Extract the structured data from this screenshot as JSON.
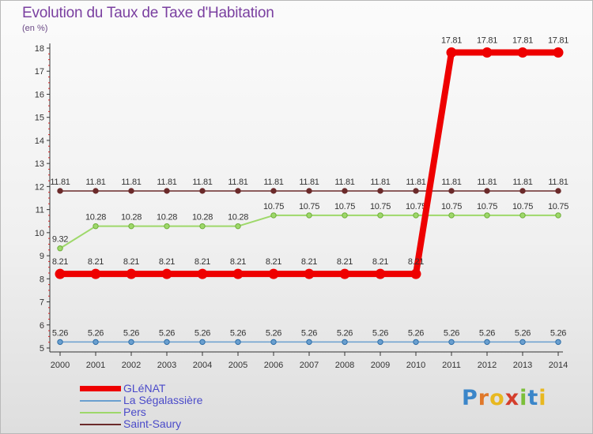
{
  "header": {
    "title": "Evolution du Taux de Taxe d'Habitation",
    "unit": "(en %)"
  },
  "branding": {
    "letters": [
      "P",
      "r",
      "o",
      "x",
      "i",
      "t",
      "i"
    ],
    "letter_colors": [
      "#3b86c9",
      "#e0782a",
      "#e8b820",
      "#d43e2c",
      "#7cbf3a",
      "#3b86c9",
      "#e8b820"
    ]
  },
  "chart_data": {
    "type": "line",
    "title": "Evolution du Taux de Taxe d'Habitation",
    "ylabel": "(en %)",
    "xlabel": "",
    "x": [
      "2000",
      "2001",
      "2002",
      "2003",
      "2004",
      "2005",
      "2006",
      "2007",
      "2008",
      "2009",
      "2010",
      "2011",
      "2012",
      "2013",
      "2014"
    ],
    "ylim": [
      5,
      18
    ],
    "yticks": [
      "5",
      "6",
      "7",
      "8",
      "9",
      "10",
      "11",
      "12",
      "13",
      "14",
      "15",
      "16",
      "17",
      "18"
    ],
    "grid": false,
    "legend_position": "bottom-left",
    "series": [
      {
        "name": "Saint-Saury",
        "color": "#6b2a2a",
        "values": [
          11.81,
          11.81,
          11.81,
          11.81,
          11.81,
          11.81,
          11.81,
          11.81,
          11.81,
          11.81,
          11.81,
          11.81,
          11.81,
          11.81,
          11.81
        ],
        "labels": [
          "11.81",
          "11.81",
          "11.81",
          "11.81",
          "11.81",
          "11.81",
          "11.81",
          "11.81",
          "11.81",
          "11.81",
          "11.81",
          "11.81",
          "11.81",
          "11.81",
          "11.81"
        ]
      },
      {
        "name": "Pers",
        "color": "#9ed86a",
        "values": [
          9.32,
          10.28,
          10.28,
          10.28,
          10.28,
          10.28,
          10.75,
          10.75,
          10.75,
          10.75,
          10.75,
          10.75,
          10.75,
          10.75,
          10.75
        ],
        "labels": [
          "9.32",
          "10.28",
          "10.28",
          "10.28",
          "10.28",
          "10.28",
          "10.75",
          "10.75",
          "10.75",
          "10.75",
          "10.75",
          "10.75",
          "10.75",
          "10.75",
          "10.75"
        ]
      },
      {
        "name": "La Ségalassière",
        "color": "#6a9fcf",
        "values": [
          5.26,
          5.26,
          5.26,
          5.26,
          5.26,
          5.26,
          5.26,
          5.26,
          5.26,
          5.26,
          5.26,
          5.26,
          5.26,
          5.26,
          5.26
        ],
        "labels": [
          "5.26",
          "5.26",
          "5.26",
          "5.26",
          "5.26",
          "5.26",
          "5.26",
          "5.26",
          "5.26",
          "5.26",
          "5.26",
          "5.26",
          "5.26",
          "5.26",
          "5.26"
        ]
      },
      {
        "name": "GLéNAT",
        "color": "#ee0000",
        "values": [
          8.21,
          8.21,
          8.21,
          8.21,
          8.21,
          8.21,
          8.21,
          8.21,
          8.21,
          8.21,
          8.21,
          17.81,
          17.81,
          17.81,
          17.81
        ],
        "labels": [
          "8.21",
          "8.21",
          "8.21",
          "8.21",
          "8.21",
          "8.21",
          "8.21",
          "8.21",
          "8.21",
          "8.21",
          "8.21",
          "17.81",
          "17.81",
          "17.81",
          "17.81"
        ]
      }
    ],
    "legend": [
      "GLéNAT",
      "La Ségalassière",
      "Pers",
      "Saint-Saury"
    ]
  }
}
